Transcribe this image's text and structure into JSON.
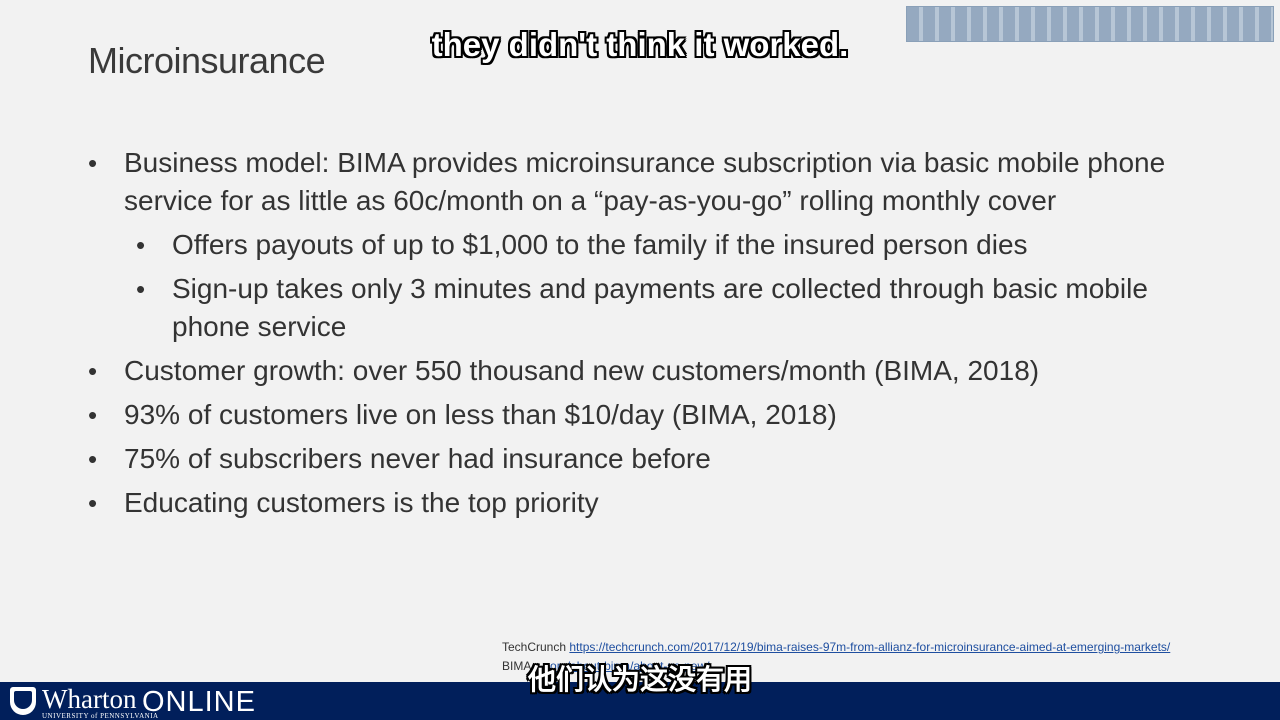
{
  "slide": {
    "title": "Microinsurance",
    "bullets": [
      {
        "level": 1,
        "text": "Business model: BIMA provides microinsurance subscription via basic mobile phone service for as little as 60c/month on a “pay-as-you-go” rolling monthly cover"
      },
      {
        "level": 2,
        "text": "Offers payouts of up to $1,000 to the family if the insured person dies"
      },
      {
        "level": 2,
        "text": "Sign-up takes only 3 minutes and payments are collected through basic mobile phone service"
      },
      {
        "level": 1,
        "text": "Customer growth: over 550 thousand new customers/month (BIMA, 2018)"
      },
      {
        "level": 1,
        "text": "93% of customers live on less than $10/day (BIMA, 2018)"
      },
      {
        "level": 1,
        "text": "75% of subscribers never had insurance before"
      },
      {
        "level": 1,
        "text": "Educating customers is the top priority"
      }
    ],
    "bullet_glyph": "•",
    "sources": {
      "line1_label": "TechCrunch",
      "line1_url": "https://techcrunch.com/2017/12/19/bima-raises-97m-from-allianz-for-microinsurance-aimed-at-emerging-markets/",
      "line2_label": "BIMA",
      "line2_url": "...com/about-bima/about-us-new/"
    }
  },
  "subtitles": {
    "english": "they didn't think it worked.",
    "chinese": "他们认为这没有用"
  },
  "footer": {
    "logo_text": "Wharton",
    "logo_subtext": "UNIVERSITY of PENNSYLVANIA",
    "online_text": "ONLINE",
    "background_color": "#011f5b"
  }
}
